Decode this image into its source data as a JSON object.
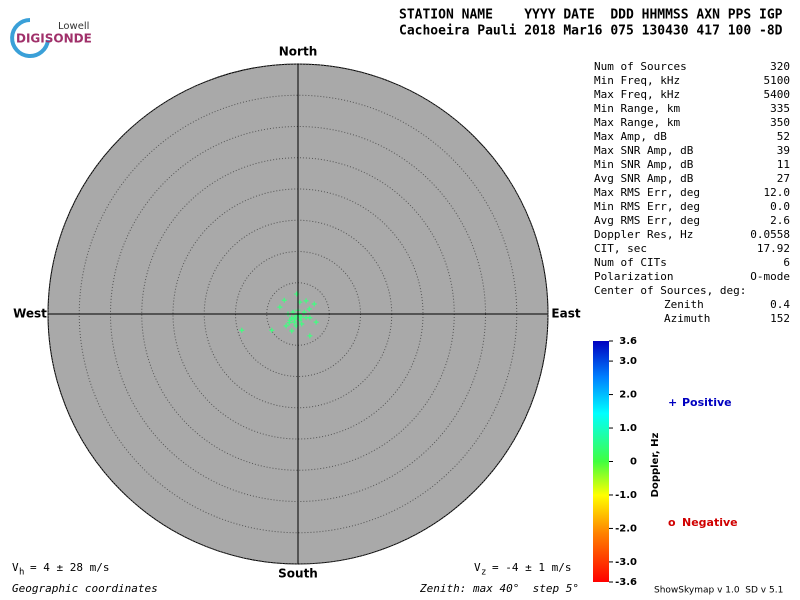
{
  "logo": {
    "top": "Lowell",
    "bottom": "DIGISONDE"
  },
  "header": {
    "line1": "STATION NAME    YYYY DATE  DDD HHMMSS AXN PPS IGP",
    "line2": "Cachoeira Pauli 2018 Mar16 075 130430 417 100 -8D"
  },
  "stats": [
    [
      "Num of Sources",
      "320"
    ],
    [
      "Min Freq, kHz",
      "5100"
    ],
    [
      "Max Freq, kHz",
      "5400"
    ],
    [
      "Min Range, km",
      "335"
    ],
    [
      "Max Range, km",
      "350"
    ],
    [
      "Max Amp, dB",
      "52"
    ],
    [
      "Max SNR Amp, dB",
      "39"
    ],
    [
      "Min SNR Amp, dB",
      "11"
    ],
    [
      "Avg SNR Amp, dB",
      "27"
    ],
    [
      "Max RMS Err, deg",
      "12.0"
    ],
    [
      "Min RMS Err, deg",
      "0.0"
    ],
    [
      "Avg RMS Err, deg",
      "2.6"
    ],
    [
      "Doppler Res, Hz",
      "0.0558"
    ],
    [
      "CIT, sec",
      "17.92"
    ],
    [
      "Num of CITs",
      "6"
    ],
    [
      "Polarization",
      "O-mode"
    ]
  ],
  "center": {
    "title": "Center of Sources, deg:",
    "rows": [
      [
        "Zenith",
        "0.4"
      ],
      [
        "Azimuth",
        "152"
      ]
    ]
  },
  "directions": {
    "north": "North",
    "south": "South",
    "west": "West",
    "east": "East"
  },
  "colorbar": {
    "label": "Doppler, Hz",
    "ylim": [
      -3.6,
      3.6
    ],
    "ticks": [
      3.6,
      {
        "value": 3,
        "label": "3.0"
      },
      {
        "value": 2,
        "label": "2.0"
      },
      {
        "value": 1,
        "label": "1.0"
      },
      0,
      {
        "value": -1,
        "label": "-1.0"
      },
      {
        "value": -2,
        "label": "-2.0"
      },
      {
        "value": -3,
        "label": "-3.0"
      },
      -3.6
    ]
  },
  "legend": {
    "positive": {
      "symbol": "+",
      "text": "Positive"
    },
    "negative": {
      "symbol": "o",
      "text": "Negative"
    }
  },
  "footer": {
    "vh": {
      "symbol": "V",
      "sub": "h",
      "text": "= 4 ± 28 m/s"
    },
    "vz": {
      "symbol": "V",
      "sub": "z",
      "text": "= -4 ± 1 m/s"
    },
    "coords": "Geographic coordinates",
    "zenith": "Zenith: max 40°  step 5°",
    "version": "ShowSkymap v 1.0  SD v 5.1"
  },
  "chart_data": {
    "type": "scatter",
    "color": "#40ff80",
    "xlim": [
      -40,
      40
    ],
    "ylim": [
      -40,
      40
    ],
    "rings": [
      5,
      10,
      15,
      20,
      25,
      30,
      35,
      40
    ],
    "series": [
      {
        "name": "Positive",
        "x": [
          -0.3,
          -1.0,
          0.3,
          -1.6,
          1.0,
          -0.6,
          0,
          0.6,
          -1.3,
          1.3,
          -0.3,
          0.3,
          -0.2,
          1.3,
          2.6,
          -2.9,
          -2.2,
          -4.2,
          -9.0,
          1.9,
          1.9,
          -1.9,
          -0.8,
          0.2,
          -0.5,
          0.5,
          -1.4,
          -1.0,
          1.8,
          2.9
        ],
        "values": [
          -0.3,
          -0.6,
          -1.0,
          0,
          0.3,
          -1.3,
          0.6,
          -1.6,
          -1.0,
          -0.6,
          -1.9,
          1.9,
          3.2,
          2.1,
          1.6,
          1.1,
          2.2,
          -2.6,
          -2.6,
          -3.5,
          -0.6,
          -1.9,
          0.3,
          -0.2,
          -0.8,
          -0.5,
          -1.4,
          -2.7,
          0.8,
          -1.3
        ]
      }
    ]
  }
}
